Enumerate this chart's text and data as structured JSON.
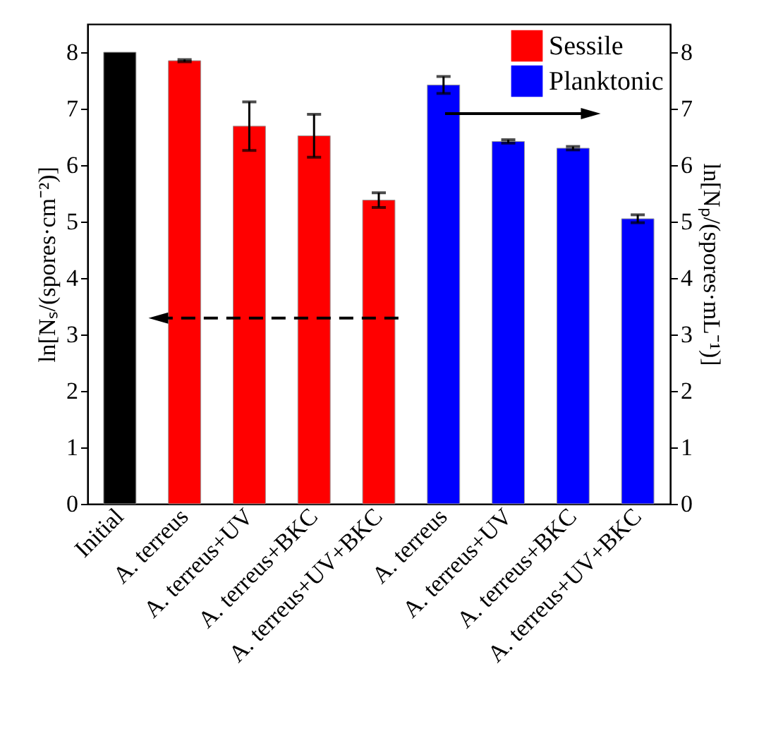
{
  "chart_data": {
    "type": "bar",
    "categories": [
      "Initial",
      "A. terreus",
      "A. terreus+UV",
      "A. terreus+BKC",
      "A. terreus+UV+BKC",
      "A. terreus",
      "A. terreus+UV",
      "A. terreus+BKC",
      "A. terreus+UV+BKC"
    ],
    "series": [
      {
        "color": "#000000",
        "values": [
          8.0,
          null,
          null,
          null,
          null,
          null,
          null,
          null,
          null
        ]
      },
      {
        "name": "Sessile",
        "color": "#ff0000",
        "values": [
          null,
          7.85,
          6.69,
          6.52,
          5.38,
          null,
          null,
          null,
          null
        ],
        "errors": [
          null,
          0.02,
          0.43,
          0.38,
          0.13,
          null,
          null,
          null,
          null
        ]
      },
      {
        "name": "Planktonic",
        "color": "#0000ff",
        "axis": "y2",
        "values": [
          null,
          null,
          null,
          null,
          null,
          7.42,
          6.42,
          6.3,
          5.05
        ],
        "errors": [
          null,
          null,
          null,
          null,
          null,
          0.15,
          0.03,
          0.03,
          0.07
        ]
      }
    ],
    "ylabel": "ln[Nₛ/(spores·cm⁻²)]",
    "y2label": "ln[Nₚ/(spores·mL⁻¹)]",
    "ylim": [
      0,
      8.5
    ],
    "yticks": [
      0,
      1,
      2,
      3,
      4,
      5,
      6,
      7,
      8
    ],
    "y2lim": [
      0,
      8.5
    ],
    "y2ticks": [
      0,
      1,
      2,
      3,
      4,
      5,
      6,
      7,
      8
    ],
    "grid": false,
    "legend": "top right"
  }
}
